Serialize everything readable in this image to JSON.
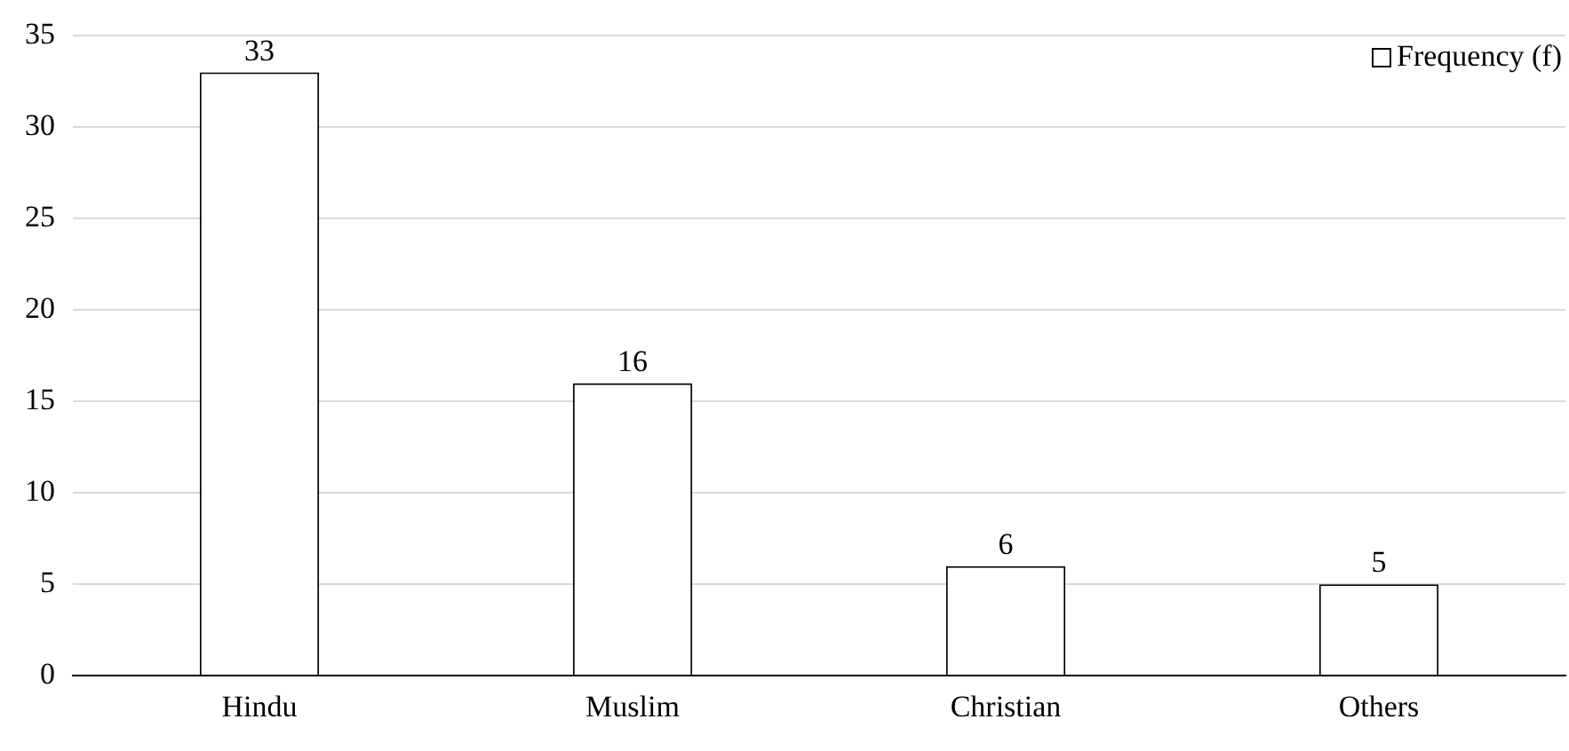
{
  "chart_data": {
    "type": "bar",
    "categories": [
      "Hindu",
      "Muslim",
      "Christian",
      "Others"
    ],
    "series": [
      {
        "name": "Frequency (f)",
        "color": "#ffffff",
        "values": [
          33,
          16,
          6,
          5
        ]
      }
    ],
    "ylim": [
      0,
      35
    ],
    "yticks": [
      0,
      5,
      10,
      15,
      20,
      25,
      30,
      35
    ],
    "grid": "y",
    "legend": "top right",
    "data_labels": true
  }
}
